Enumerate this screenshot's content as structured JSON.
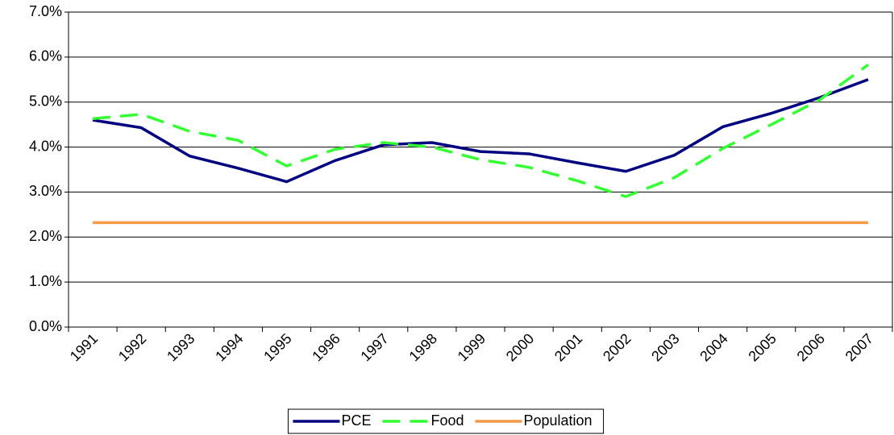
{
  "chart_data": {
    "type": "line",
    "categories": [
      "1991",
      "1992",
      "1993",
      "1994",
      "1995",
      "1996",
      "1997",
      "1998",
      "1999",
      "2000",
      "2001",
      "2002",
      "2003",
      "2004",
      "2005",
      "2006",
      "2007"
    ],
    "series": [
      {
        "name": "PCE",
        "color": "#000080",
        "dash": false,
        "values": [
          4.6,
          4.43,
          3.8,
          3.53,
          3.23,
          3.7,
          4.05,
          4.1,
          3.9,
          3.85,
          3.65,
          3.46,
          3.82,
          4.45,
          4.75,
          5.1,
          5.5
        ]
      },
      {
        "name": "Food",
        "color": "#33ff33",
        "dash": true,
        "values": [
          4.63,
          4.73,
          4.35,
          4.15,
          3.58,
          3.95,
          4.1,
          4.0,
          3.72,
          3.55,
          3.25,
          2.9,
          3.32,
          3.97,
          4.5,
          5.05,
          5.83
        ]
      },
      {
        "name": "Population",
        "color": "#f59a45",
        "dash": false,
        "values": [
          2.32,
          2.32,
          2.32,
          2.32,
          2.32,
          2.32,
          2.32,
          2.32,
          2.32,
          2.32,
          2.32,
          2.32,
          2.32,
          2.32,
          2.32,
          2.32,
          2.32
        ]
      }
    ],
    "ylim": [
      0,
      7
    ],
    "yticks": [
      {
        "value": 0,
        "label": "0.0%"
      },
      {
        "value": 1,
        "label": "1.0%"
      },
      {
        "value": 2,
        "label": "2.0%"
      },
      {
        "value": 3,
        "label": "3.0%"
      },
      {
        "value": 4,
        "label": "4.0%"
      },
      {
        "value": 5,
        "label": "5.0%"
      },
      {
        "value": 6,
        "label": "6.0%"
      },
      {
        "value": 7,
        "label": "7.0%"
      }
    ],
    "grid": true,
    "legend": "bottom"
  }
}
